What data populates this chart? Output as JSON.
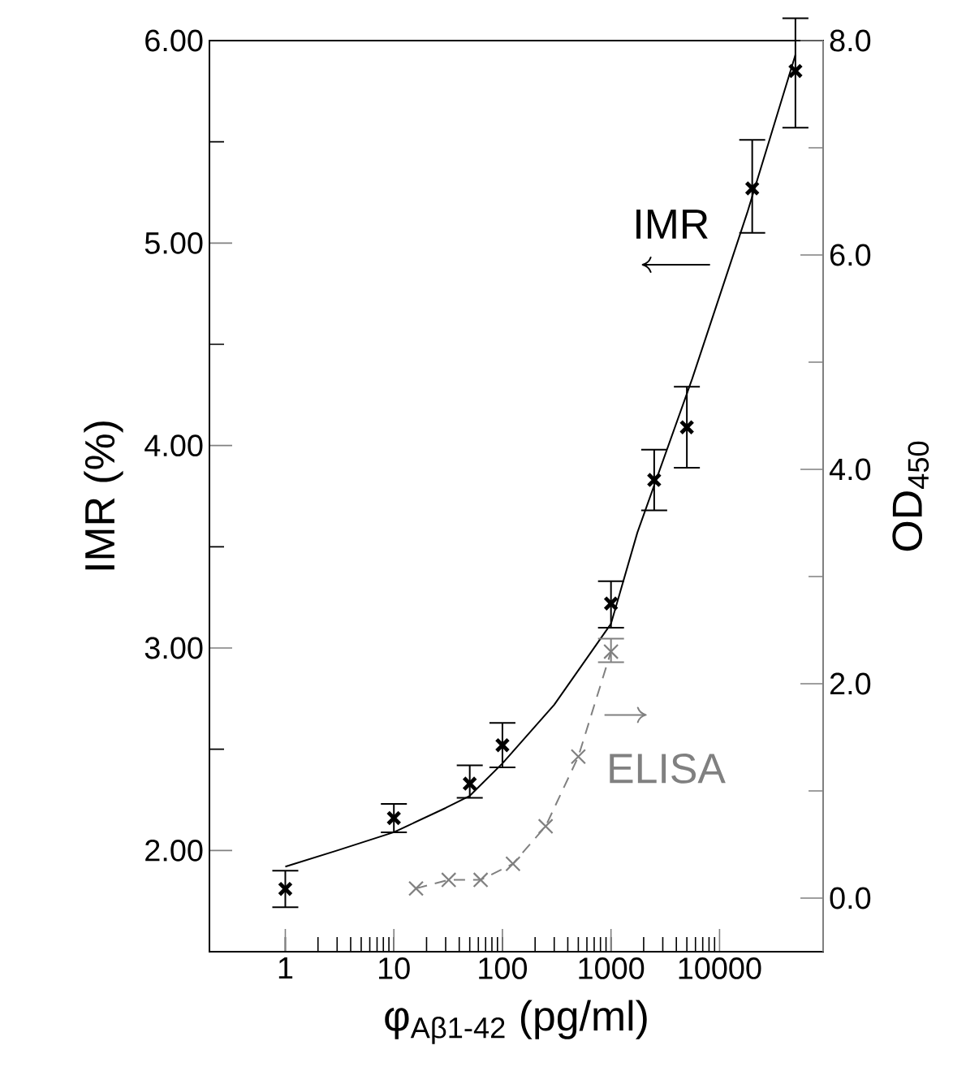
{
  "chart_data": {
    "type": "scatter",
    "xlabel": "φ$_{Aβ1-42}$ (pg/ml)",
    "ylabel": "IMR (%)",
    "y2label": "OD$_{450}$",
    "log": "x",
    "xlim": [
      0.2,
      90000
    ],
    "xticks": [
      1,
      10,
      100,
      1000,
      10000
    ],
    "ylim": [
      1.5,
      6.0
    ],
    "yticks": [
      {
        "value": 2,
        "label": "2.00"
      },
      {
        "value": 2.5,
        "label": null
      },
      {
        "value": 3,
        "label": "3.00"
      },
      {
        "value": 3.5,
        "label": null
      },
      {
        "value": 4,
        "label": "4.00"
      },
      {
        "value": 4.5,
        "label": null
      },
      {
        "value": 5,
        "label": "5.00"
      },
      {
        "value": 5.5,
        "label": null
      },
      {
        "value": 6,
        "label": "6.00"
      }
    ],
    "y2lim": [
      -0.5,
      8.0
    ],
    "y2ticks": [
      {
        "value": 0,
        "label": "0.0"
      },
      {
        "value": 1,
        "label": null
      },
      {
        "value": 2,
        "label": "2.0"
      },
      {
        "value": 3,
        "label": null
      },
      {
        "value": 4,
        "label": "4.0"
      },
      {
        "value": 5,
        "label": null
      },
      {
        "value": 6,
        "label": "6.0"
      },
      {
        "value": 7,
        "label": null
      },
      {
        "value": 8,
        "label": "8.0"
      }
    ],
    "series": [
      {
        "name": "IMR",
        "color": "#000000",
        "marker": "cross",
        "x": [
          1,
          10,
          50,
          100,
          1000,
          2500,
          5000,
          20000,
          50000
        ],
        "values": [
          1.81,
          2.16,
          2.33,
          2.52,
          3.22,
          3.83,
          4.09,
          5.27,
          5.85
        ],
        "errors": [
          [
            1.72,
            1.9
          ],
          [
            2.09,
            2.23
          ],
          [
            2.26,
            2.42
          ],
          [
            2.41,
            2.63
          ],
          [
            3.1,
            3.33
          ],
          [
            3.68,
            3.98
          ],
          [
            3.89,
            4.29
          ],
          [
            5.05,
            5.51
          ],
          [
            5.57,
            6.11
          ]
        ]
      },
      {
        "type": "line",
        "color": "#000000",
        "marker": "none",
        "line_style": "solid",
        "x": [
          1,
          3,
          10,
          30,
          50,
          100,
          300,
          1000,
          1750,
          5600,
          18000,
          50000
        ],
        "values": [
          1.92,
          2.0,
          2.09,
          2.21,
          2.27,
          2.43,
          2.72,
          3.12,
          3.57,
          4.33,
          5.15,
          5.93
        ]
      },
      {
        "name": "ELISA",
        "type": "line",
        "axis": "y2",
        "color": "#808080",
        "marker": "cross",
        "line_style": "dashed",
        "x": [
          16,
          32,
          63,
          125,
          250,
          500,
          1000
        ],
        "values": [
          0.09,
          0.17,
          0.17,
          0.32,
          0.67,
          1.32,
          2.3
        ],
        "errors": [
          null,
          null,
          null,
          null,
          null,
          null,
          [
            2.2,
            2.42
          ]
        ]
      }
    ]
  }
}
